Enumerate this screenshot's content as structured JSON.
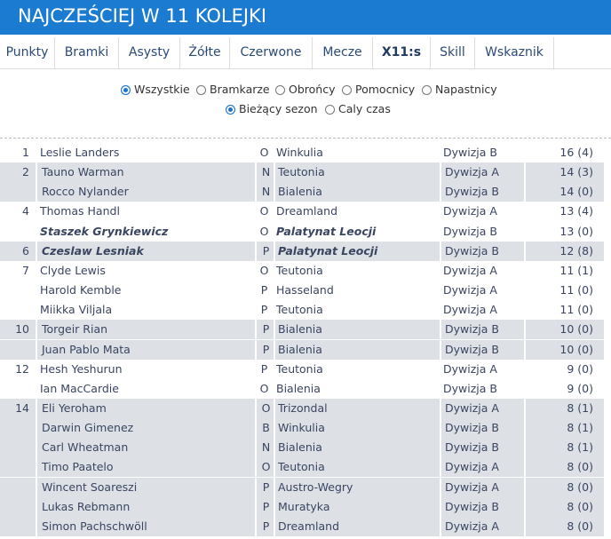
{
  "header": {
    "title": "NAJCZEŚCIEJ W 11 KOLEJKI"
  },
  "tabs": [
    {
      "label": "Punkty"
    },
    {
      "label": "Bramki"
    },
    {
      "label": "Asysty"
    },
    {
      "label": "Żółte"
    },
    {
      "label": "Czerwone"
    },
    {
      "label": "Mecze"
    },
    {
      "label": "X11:s",
      "active": true
    },
    {
      "label": "Skill"
    },
    {
      "label": "Wskaznik"
    }
  ],
  "filters": {
    "positions": [
      {
        "label": "Wszystkie",
        "checked": true
      },
      {
        "label": "Bramkarze"
      },
      {
        "label": "Obrońcy"
      },
      {
        "label": "Pomocnicy"
      },
      {
        "label": "Napastnicy"
      }
    ],
    "period": [
      {
        "label": "Bieżący sezon",
        "checked": true
      },
      {
        "label": "Caly czas"
      }
    ]
  },
  "table": {
    "rows": [
      {
        "rank": 1,
        "name": "Leslie Landers",
        "pos": "O",
        "team": "Winkulia",
        "division": "Dywizja B",
        "points": "16 (4)"
      },
      {
        "rank": 2,
        "name": "Tauno Warman",
        "pos": "N",
        "team": "Teutonia",
        "division": "Dywizja A",
        "points": "14 (3)"
      },
      {
        "rank": null,
        "name": "Rocco Nylander",
        "pos": "N",
        "team": "Bialenia",
        "division": "Dywizja B",
        "points": "14 (0)"
      },
      {
        "rank": 4,
        "name": "Thomas Handl",
        "pos": "O",
        "team": "Dreamland",
        "division": "Dywizja A",
        "points": "13 (4)"
      },
      {
        "rank": null,
        "name": "Staszek Grynkiewicz",
        "pos": "O",
        "team": "Palatynat Leocji",
        "division": "Dywizja B",
        "points": "13 (0)",
        "highlighted": true
      },
      {
        "rank": 6,
        "name": "Czeslaw Lesniak",
        "pos": "P",
        "team": "Palatynat Leocji",
        "division": "Dywizja B",
        "points": "12 (8)",
        "highlighted": true
      },
      {
        "rank": 7,
        "name": "Clyde Lewis",
        "pos": "O",
        "team": "Teutonia",
        "division": "Dywizja A",
        "points": "11 (1)"
      },
      {
        "rank": null,
        "name": "Harold Kemble",
        "pos": "P",
        "team": "Hasseland",
        "division": "Dywizja A",
        "points": "11 (0)"
      },
      {
        "rank": null,
        "name": "Miikka Viljala",
        "pos": "P",
        "team": "Teutonia",
        "division": "Dywizja A",
        "points": "11 (0)"
      },
      {
        "rank": 10,
        "name": "Torgeir Rian",
        "pos": "P",
        "team": "Bialenia",
        "division": "Dywizja B",
        "points": "10 (0)"
      },
      {
        "rank": null,
        "name": "Juan Pablo Mata",
        "pos": "P",
        "team": "Bialenia",
        "division": "Dywizja B",
        "points": "10 (0)"
      },
      {
        "rank": 12,
        "name": "Hesh Yeshurun",
        "pos": "P",
        "team": "Teutonia",
        "division": "Dywizja A",
        "points": "9 (0)"
      },
      {
        "rank": null,
        "name": "Ian MacCardie",
        "pos": "O",
        "team": "Bialenia",
        "division": "Dywizja B",
        "points": "9 (0)"
      },
      {
        "rank": 14,
        "name": "Eli Yeroham",
        "pos": "O",
        "team": "Trizondal",
        "division": "Dywizja A",
        "points": "8 (1)"
      },
      {
        "rank": null,
        "name": "Darwin Gimenez",
        "pos": "B",
        "team": "Winkulia",
        "division": "Dywizja B",
        "points": "8 (1)"
      },
      {
        "rank": null,
        "name": "Carl Wheatman",
        "pos": "N",
        "team": "Bialenia",
        "division": "Dywizja B",
        "points": "8 (1)"
      },
      {
        "rank": null,
        "name": "Timo Paatelo",
        "pos": "O",
        "team": "Teutonia",
        "division": "Dywizja A",
        "points": "8 (0)"
      },
      {
        "rank": null,
        "name": "Wincent Soareszi",
        "pos": "P",
        "team": "Austro-Wegry",
        "division": "Dywizja A",
        "points": "8 (0)"
      },
      {
        "rank": null,
        "name": "Lukas Rebmann",
        "pos": "P",
        "team": "Muratyka",
        "division": "Dywizja B",
        "points": "8 (0)"
      },
      {
        "rank": null,
        "name": "Simon Pachschwöll",
        "pos": "P",
        "team": "Dreamland",
        "division": "Dywizja A",
        "points": "8 (0)"
      }
    ]
  }
}
